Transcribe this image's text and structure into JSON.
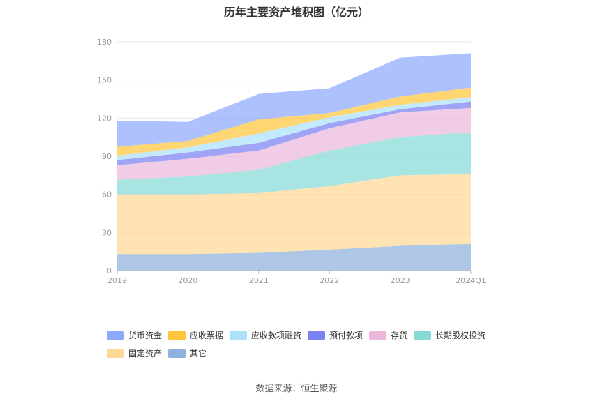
{
  "chart_data": {
    "type": "area",
    "title": "历年主要资产堆积图（亿元）",
    "xlabel": "",
    "ylabel": "",
    "stacked": true,
    "categories": [
      "2019",
      "2020",
      "2021",
      "2022",
      "2023",
      "2024Q1"
    ],
    "ylim": [
      0,
      180
    ],
    "yticks": [
      0,
      30,
      60,
      90,
      120,
      150,
      180
    ],
    "grid": true,
    "legend_position": "bottom",
    "series": [
      {
        "name": "其它",
        "color": "#8fb1dd",
        "values": [
          13,
          13,
          14,
          16.5,
          19.5,
          21
        ]
      },
      {
        "name": "固定资产",
        "color": "#ffd896",
        "values": [
          47,
          47,
          47,
          50,
          55.5,
          55
        ]
      },
      {
        "name": "长期股权投资",
        "color": "#86dad6",
        "values": [
          11.5,
          14,
          18.5,
          28,
          30,
          33
        ]
      },
      {
        "name": "存货",
        "color": "#ebb8dc",
        "values": [
          11.5,
          14,
          15,
          17.5,
          19.5,
          19
        ]
      },
      {
        "name": "预付款项",
        "color": "#7c81f1",
        "values": [
          4,
          5,
          6,
          4,
          2.5,
          5
        ]
      },
      {
        "name": "应收款项融资",
        "color": "#ace0fb",
        "values": [
          3.5,
          4,
          7.5,
          4.5,
          3.5,
          3.5
        ]
      },
      {
        "name": "应收票据",
        "color": "#ffc63b",
        "values": [
          7,
          5,
          11,
          3.5,
          6.5,
          7.5
        ]
      },
      {
        "name": "货币资金",
        "color": "#8ca9fc",
        "values": [
          20.5,
          15,
          20,
          19.5,
          30.5,
          27
        ]
      }
    ],
    "legend_order": [
      "货币资金",
      "应收票据",
      "应收款项融资",
      "预付款项",
      "存货",
      "长期股权投资",
      "固定资产",
      "其它"
    ]
  },
  "source": "数据来源：恒生聚源"
}
